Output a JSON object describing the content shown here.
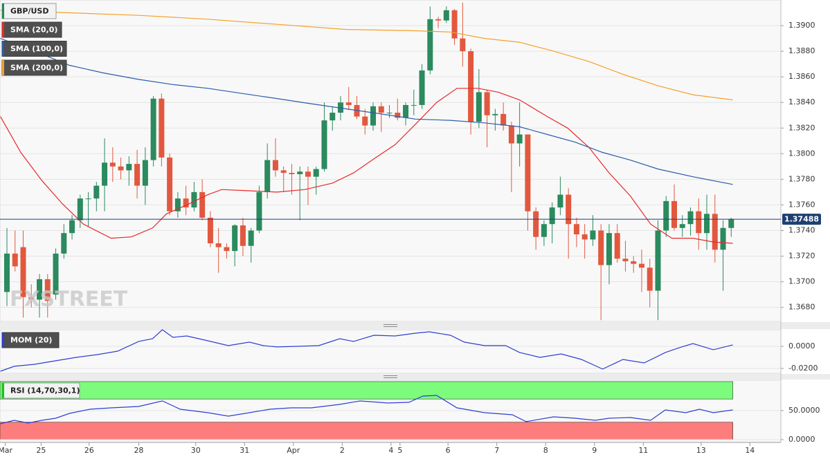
{
  "chart_data": [
    {
      "type": "candlestick",
      "title": "GBP/USD",
      "watermark": "FXSTREET",
      "up_color": "#2b8a5e",
      "down_color": "#e2583e",
      "xlim": [
        -0.85,
        95.1
      ],
      "ylim": [
        1.3669,
        1.392
      ],
      "xticks": [
        {
          "value": -0.2,
          "label": "Mar"
        },
        {
          "value": 4.2,
          "label": "25"
        },
        {
          "value": 10.1,
          "label": "26"
        },
        {
          "value": 16.2,
          "label": "28"
        },
        {
          "value": 23.2,
          "label": "30"
        },
        {
          "value": 29.2,
          "label": "31"
        },
        {
          "value": 35.2,
          "label": "Apr"
        },
        {
          "value": 41.2,
          "label": "2"
        },
        {
          "value": 47.2,
          "label": "4"
        },
        {
          "value": 48.3,
          "label": "5"
        },
        {
          "value": 54.2,
          "label": "6"
        },
        {
          "value": 60.2,
          "label": "7"
        },
        {
          "value": 66.2,
          "label": "8"
        },
        {
          "value": 72.2,
          "label": "9"
        },
        {
          "value": 78.2,
          "label": "11"
        },
        {
          "value": 85.3,
          "label": "13"
        },
        {
          "value": 91.3,
          "label": "14"
        }
      ],
      "yticks": [
        {
          "value": 1.368,
          "label": "1.3680"
        },
        {
          "value": 1.37,
          "label": "1.3700"
        },
        {
          "value": 1.372,
          "label": "1.3720"
        },
        {
          "value": 1.374,
          "label": "1.3740"
        },
        {
          "value": 1.376,
          "label": "1.3760"
        },
        {
          "value": 1.378,
          "label": "1.3780"
        },
        {
          "value": 1.38,
          "label": "1.3800"
        },
        {
          "value": 1.382,
          "label": "1.3820"
        },
        {
          "value": 1.384,
          "label": "1.3840"
        },
        {
          "value": 1.386,
          "label": "1.3860"
        },
        {
          "value": 1.388,
          "label": "1.3880"
        },
        {
          "value": 1.39,
          "label": "1.3900"
        }
      ],
      "grid": true,
      "current_price": 1.37488,
      "current_price_color": "#1f3f73",
      "ohlc": [
        [
          1.3692,
          1.3742,
          1.3681,
          1.3722
        ],
        [
          1.3722,
          1.374,
          1.3708,
          1.3712
        ],
        [
          1.3727,
          1.374,
          1.3672,
          1.3688
        ],
        [
          1.3688,
          1.3698,
          1.368,
          1.3686
        ],
        [
          1.3686,
          1.3706,
          1.3672,
          1.3702
        ],
        [
          1.3702,
          1.3706,
          1.3672,
          1.3685
        ],
        [
          1.369,
          1.3726,
          1.3686,
          1.3722
        ],
        [
          1.3722,
          1.3745,
          1.3718,
          1.3738
        ],
        [
          1.3738,
          1.3752,
          1.3733,
          1.3748
        ],
        [
          1.3748,
          1.3768,
          1.3742,
          1.3765
        ],
        [
          1.3765,
          1.377,
          1.3743,
          1.3765
        ],
        [
          1.3765,
          1.3778,
          1.3755,
          1.3775
        ],
        [
          1.3775,
          1.3812,
          1.3755,
          1.3793
        ],
        [
          1.3793,
          1.3805,
          1.3778,
          1.379
        ],
        [
          1.379,
          1.3797,
          1.378,
          1.3787
        ],
        [
          1.3787,
          1.3798,
          1.3775,
          1.3792
        ],
        [
          1.3792,
          1.3803,
          1.3765,
          1.3775
        ],
        [
          1.3775,
          1.3805,
          1.376,
          1.3795
        ],
        [
          1.3795,
          1.3845,
          1.379,
          1.3843
        ],
        [
          1.3843,
          1.3847,
          1.379,
          1.3797
        ],
        [
          1.3797,
          1.38,
          1.3752,
          1.3755
        ],
        [
          1.3755,
          1.377,
          1.375,
          1.3765
        ],
        [
          1.3765,
          1.3775,
          1.3752,
          1.3758
        ],
        [
          1.3758,
          1.3778,
          1.3755,
          1.377
        ],
        [
          1.377,
          1.378,
          1.3748,
          1.375
        ],
        [
          1.375,
          1.3755,
          1.3727,
          1.373
        ],
        [
          1.373,
          1.3742,
          1.3707,
          1.3727
        ],
        [
          1.3727,
          1.373,
          1.3718,
          1.3724
        ],
        [
          1.3724,
          1.3745,
          1.3712,
          1.3744
        ],
        [
          1.3744,
          1.375,
          1.372,
          1.3728
        ],
        [
          1.3728,
          1.3742,
          1.3715,
          1.374
        ],
        [
          1.374,
          1.3775,
          1.3738,
          1.377
        ],
        [
          1.377,
          1.3808,
          1.3765,
          1.3795
        ],
        [
          1.3795,
          1.3812,
          1.3782,
          1.3787
        ],
        [
          1.3787,
          1.379,
          1.377,
          1.3785
        ],
        [
          1.3785,
          1.3792,
          1.3768,
          1.3784
        ],
        [
          1.3784,
          1.379,
          1.3748,
          1.3786
        ],
        [
          1.3786,
          1.379,
          1.376,
          1.3782
        ],
        [
          1.3782,
          1.379,
          1.3768,
          1.3788
        ],
        [
          1.3788,
          1.384,
          1.3786,
          1.3826
        ],
        [
          1.3826,
          1.3837,
          1.3818,
          1.3832
        ],
        [
          1.3832,
          1.3845,
          1.3826,
          1.384
        ],
        [
          1.384,
          1.3852,
          1.3834,
          1.3838
        ],
        [
          1.3838,
          1.3845,
          1.3827,
          1.3829
        ],
        [
          1.3829,
          1.3835,
          1.3815,
          1.3822
        ],
        [
          1.3822,
          1.384,
          1.3818,
          1.3837
        ],
        [
          1.3837,
          1.384,
          1.3817,
          1.3832
        ],
        [
          1.3832,
          1.3838,
          1.3828,
          1.3832
        ],
        [
          1.3832,
          1.3843,
          1.3826,
          1.3828
        ],
        [
          1.3828,
          1.384,
          1.3822,
          1.3838
        ],
        [
          1.3838,
          1.385,
          1.383,
          1.3838
        ],
        [
          1.3838,
          1.387,
          1.3835,
          1.3865
        ],
        [
          1.3865,
          1.3915,
          1.3862,
          1.3905
        ],
        [
          1.3905,
          1.3907,
          1.3898,
          1.3904
        ],
        [
          1.3904,
          1.3915,
          1.3902,
          1.3912
        ],
        [
          1.3912,
          1.3913,
          1.3885,
          1.389
        ],
        [
          1.389,
          1.3918,
          1.3868,
          1.388
        ],
        [
          1.388,
          1.3882,
          1.3815,
          1.3825
        ],
        [
          1.3825,
          1.3866,
          1.382,
          1.3848
        ],
        [
          1.3848,
          1.385,
          1.3805,
          1.383
        ],
        [
          1.383,
          1.3835,
          1.3818,
          1.3831
        ],
        [
          1.3831,
          1.384,
          1.3818,
          1.3822
        ],
        [
          1.3822,
          1.3825,
          1.377,
          1.3808
        ],
        [
          1.3808,
          1.384,
          1.379,
          1.3815
        ],
        [
          1.3815,
          1.3815,
          1.374,
          1.3755
        ],
        [
          1.3755,
          1.3758,
          1.3725,
          1.3735
        ],
        [
          1.3735,
          1.3748,
          1.3728,
          1.3745
        ],
        [
          1.3745,
          1.3762,
          1.373,
          1.3758
        ],
        [
          1.3758,
          1.3782,
          1.3752,
          1.3768
        ],
        [
          1.3768,
          1.3773,
          1.3718,
          1.3745
        ],
        [
          1.3745,
          1.375,
          1.3727,
          1.3737
        ],
        [
          1.3737,
          1.3745,
          1.3718,
          1.3733
        ],
        [
          1.3733,
          1.3752,
          1.3728,
          1.374
        ],
        [
          1.374,
          1.3745,
          1.367,
          1.3713
        ],
        [
          1.3713,
          1.3745,
          1.3698,
          1.3738
        ],
        [
          1.3738,
          1.3745,
          1.3715,
          1.3718
        ],
        [
          1.3718,
          1.3732,
          1.3708,
          1.3716
        ],
        [
          1.3716,
          1.372,
          1.3707,
          1.3714
        ],
        [
          1.3714,
          1.3725,
          1.3692,
          1.3711
        ],
        [
          1.3711,
          1.3718,
          1.368,
          1.3693
        ],
        [
          1.3693,
          1.3748,
          1.367,
          1.374
        ],
        [
          1.374,
          1.3767,
          1.3735,
          1.3763
        ],
        [
          1.3763,
          1.3776,
          1.374,
          1.3742
        ],
        [
          1.3742,
          1.3752,
          1.3735,
          1.3745
        ],
        [
          1.3745,
          1.3758,
          1.3736,
          1.3755
        ],
        [
          1.3755,
          1.3765,
          1.3725,
          1.3738
        ],
        [
          1.3738,
          1.3768,
          1.3725,
          1.3753
        ],
        [
          1.3753,
          1.3768,
          1.3715,
          1.3725
        ],
        [
          1.3725,
          1.3748,
          1.3693,
          1.3742
        ],
        [
          1.3742,
          1.375,
          1.3735,
          1.37488
        ]
      ],
      "lines": [
        {
          "name": "SMA (20,0)",
          "color": "#e8282b",
          "x": [
            -0.8,
            1.7,
            4.3,
            6.8,
            9.4,
            12.8,
            15.3,
            17.9,
            19.6,
            22.1,
            24.7,
            26.4,
            29.8,
            33.2,
            36.6,
            40,
            42.6,
            45.1,
            47.7,
            50.2,
            52.8,
            55.3,
            57.9,
            60.4,
            63,
            66.4,
            68.9,
            71.5,
            74,
            76.6,
            79.1,
            81.7,
            84.3,
            86.8,
            89.2
          ],
          "values": [
            1.3829,
            1.3801,
            1.3779,
            1.3761,
            1.3745,
            1.3734,
            1.3735,
            1.3742,
            1.3753,
            1.376,
            1.3768,
            1.3772,
            1.3771,
            1.377,
            1.3772,
            1.3777,
            1.3785,
            1.3796,
            1.3807,
            1.3823,
            1.384,
            1.3851,
            1.3851,
            1.3848,
            1.3842,
            1.3829,
            1.382,
            1.3805,
            1.3785,
            1.3767,
            1.3745,
            1.3734,
            1.3734,
            1.3731,
            1.373
          ]
        },
        {
          "name": "SMA (100,0)",
          "color": "#2a5caa",
          "x": [
            -0.8,
            3.4,
            7.7,
            11.9,
            16.2,
            20.4,
            24.7,
            28.9,
            33.2,
            37.4,
            41.7,
            46,
            50.2,
            54.5,
            58.7,
            63,
            66.4,
            69.8,
            73.2,
            76.6,
            80,
            84.3,
            89.2
          ],
          "values": [
            1.389,
            1.388,
            1.3869,
            1.3863,
            1.3858,
            1.3854,
            1.3851,
            1.3847,
            1.3843,
            1.3839,
            1.3835,
            1.3831,
            1.3827,
            1.3826,
            1.3824,
            1.3821,
            1.3815,
            1.3809,
            1.3801,
            1.3795,
            1.3788,
            1.3782,
            1.3776
          ]
        },
        {
          "name": "SMA (200,0)",
          "color": "#f5a02a",
          "x": [
            -0.8,
            7.7,
            16.2,
            24.7,
            33.2,
            41.7,
            50.2,
            54.5,
            58.7,
            63,
            67.2,
            71.5,
            75.7,
            80,
            84.3,
            89.2
          ],
          "values": [
            1.3912,
            1.391,
            1.3908,
            1.3905,
            1.3901,
            1.3897,
            1.3896,
            1.3895,
            1.389,
            1.3887,
            1.388,
            1.3872,
            1.3862,
            1.3853,
            1.3846,
            1.3842
          ]
        }
      ]
    },
    {
      "type": "line",
      "title": "MOM (20)",
      "color": "#2b3fd0",
      "xlim": [
        -0.85,
        95.1
      ],
      "ylim": [
        -0.0244,
        0.015
      ],
      "yticks": [
        {
          "value": 0,
          "label": "0.0000"
        },
        {
          "value": -0.02,
          "label": "-0.0200"
        }
      ],
      "x": [
        -0.8,
        0.9,
        3.4,
        6,
        8.5,
        11.1,
        13.6,
        16.2,
        17.9,
        19.1,
        20.4,
        22.1,
        24.7,
        27.2,
        29.8,
        31.5,
        33.2,
        35.7,
        38.3,
        40.9,
        42.6,
        45.1,
        47.7,
        50.2,
        51.9,
        54.5,
        56.2,
        58.7,
        61.3,
        63,
        65.5,
        68.1,
        70.6,
        73.2,
        75.7,
        78.3,
        80.9,
        82.6,
        84.3,
        86.8,
        89.2
      ],
      "values": [
        -0.0225,
        -0.0181,
        -0.0163,
        -0.0131,
        -0.01,
        -0.0075,
        -0.0044,
        0.0044,
        0.0069,
        0.015,
        0.0081,
        0.0094,
        0.005,
        0.0006,
        0.0038,
        0.0006,
        -0.0006,
        0,
        0.0006,
        0.0069,
        0.0044,
        0.01,
        0.0094,
        0.0119,
        0.0131,
        0.01,
        0.0038,
        0.0006,
        0.0006,
        -0.0056,
        -0.01,
        -0.0069,
        -0.0119,
        -0.0206,
        -0.0119,
        -0.015,
        -0.0056,
        -0.0013,
        0.0025,
        -0.0031,
        0.0013
      ]
    },
    {
      "type": "line",
      "title": "RSI (14,70,30,1)",
      "color": "#2b3fd0",
      "xlim": [
        -0.85,
        95.1
      ],
      "ylim": [
        -4.8,
        102.4
      ],
      "yticks": [
        {
          "value": 50,
          "label": "50.0000"
        },
        {
          "value": 0,
          "label": "0.0000"
        }
      ],
      "bands": [
        {
          "from": 70,
          "to": 100,
          "color": "#7dfb7d"
        },
        {
          "from": 0,
          "to": 30,
          "color": "#fd7d7d"
        }
      ],
      "x": [
        -0.8,
        0.9,
        2.6,
        4.3,
        6,
        7.7,
        10.2,
        12.8,
        16.2,
        19.1,
        21.3,
        24.7,
        27.2,
        29.8,
        32.3,
        34.9,
        37.4,
        40.9,
        43.4,
        46.8,
        49.4,
        51.1,
        52.8,
        55.3,
        58.7,
        62.1,
        63.8,
        67.2,
        69.8,
        72.3,
        74,
        76.6,
        79.1,
        80.9,
        83.4,
        85.1,
        86.8,
        89.2
      ],
      "values": [
        27.4,
        33.3,
        28.6,
        33.3,
        36.9,
        45.2,
        52.4,
        54.8,
        57.1,
        66.7,
        52.4,
        46.4,
        40.5,
        46.4,
        52.4,
        54.8,
        54.8,
        60.7,
        66.7,
        63.1,
        64.3,
        75,
        76.2,
        54.8,
        46.4,
        42.9,
        31,
        39.3,
        36.9,
        33.3,
        36.9,
        38.1,
        33.3,
        51.2,
        46.4,
        52.4,
        46.4,
        51.2
      ]
    }
  ]
}
